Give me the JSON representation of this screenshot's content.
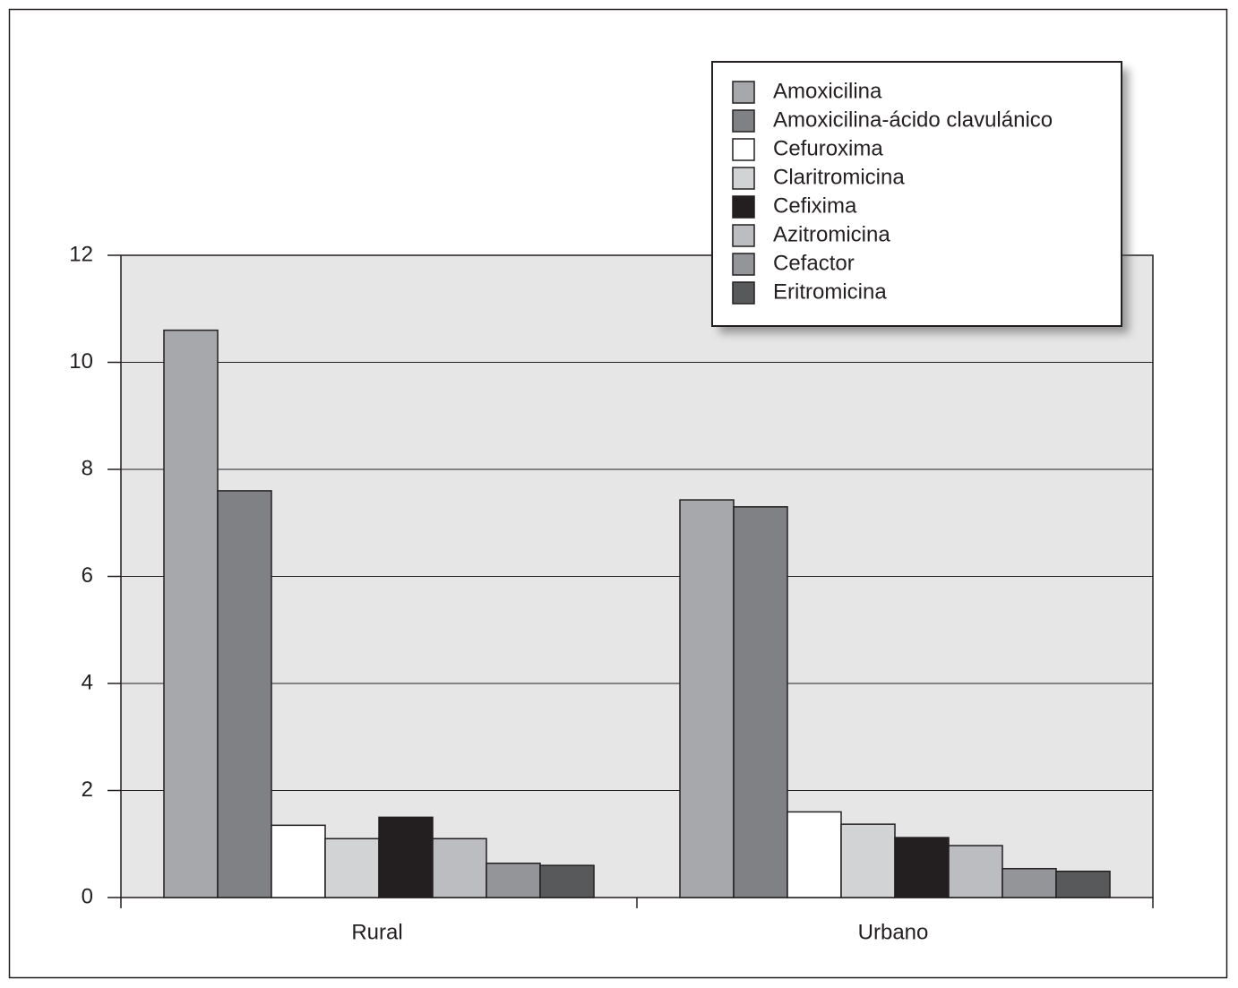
{
  "chart_data": {
    "type": "bar",
    "categories": [
      "Rural",
      "Urbano"
    ],
    "series": [
      {
        "name": "Amoxicilina",
        "color": "#a7a8ab",
        "values": [
          10.6,
          7.43
        ]
      },
      {
        "name": "Amoxicilina-ácido clavulánico",
        "color": "#808184",
        "values": [
          7.6,
          7.3
        ]
      },
      {
        "name": "Cefuroxima",
        "color": "#ffffff",
        "values": [
          1.35,
          1.6
        ]
      },
      {
        "name": "Claritromicina",
        "color": "#d2d3d5",
        "values": [
          1.1,
          1.37
        ]
      },
      {
        "name": "Cefixima",
        "color": "#231f20",
        "values": [
          1.5,
          1.12
        ]
      },
      {
        "name": "Azitromicina",
        "color": "#bcbdc0",
        "values": [
          1.1,
          0.97
        ]
      },
      {
        "name": "Cefactor",
        "color": "#939598",
        "values": [
          0.64,
          0.54
        ]
      },
      {
        "name": "Eritromicina",
        "color": "#58595b",
        "values": [
          0.6,
          0.49
        ]
      }
    ],
    "ylim": [
      0,
      12
    ],
    "yticks": [
      0,
      2,
      4,
      6,
      8,
      10,
      12
    ],
    "grid": true
  }
}
